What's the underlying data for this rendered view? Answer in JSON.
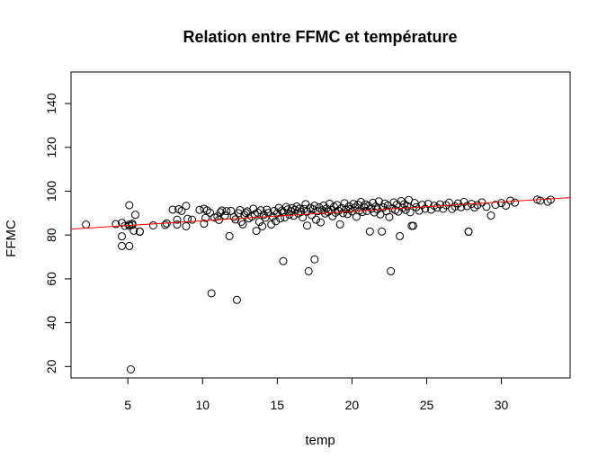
{
  "chart_data": {
    "type": "scatter",
    "title": "Relation entre  FFMC  et température",
    "xlabel": "temp",
    "ylabel": "FFMC",
    "xlim": [
      1.2,
      34.6
    ],
    "ylim": [
      14.8,
      154.4
    ],
    "xticks": [
      5,
      10,
      15,
      20,
      25,
      30
    ],
    "yticks": [
      20,
      40,
      60,
      80,
      100,
      120,
      140
    ],
    "grid": false,
    "regression_line": {
      "color": "#FF0000",
      "intercept": 82.2,
      "slope": 0.43
    },
    "points": [
      [
        2.2,
        84.8
      ],
      [
        4.2,
        85.0
      ],
      [
        4.6,
        85.6
      ],
      [
        4.6,
        79.4
      ],
      [
        4.6,
        75.0
      ],
      [
        4.8,
        84.2
      ],
      [
        5.1,
        84.2
      ],
      [
        5.1,
        93.6
      ],
      [
        5.1,
        75.0
      ],
      [
        5.1,
        84.8
      ],
      [
        5.2,
        18.7
      ],
      [
        5.3,
        85.2
      ],
      [
        5.3,
        84.6
      ],
      [
        5.4,
        82.0
      ],
      [
        5.5,
        89.2
      ],
      [
        5.8,
        81.6
      ],
      [
        5.8,
        81.5
      ],
      [
        6.7,
        84.4
      ],
      [
        7.5,
        84.6
      ],
      [
        7.6,
        85.3
      ],
      [
        8.0,
        91.6
      ],
      [
        8.3,
        87.0
      ],
      [
        8.3,
        84.8
      ],
      [
        8.4,
        91.8
      ],
      [
        8.6,
        91.0
      ],
      [
        8.9,
        84.0
      ],
      [
        8.9,
        93.3
      ],
      [
        9.0,
        87.4
      ],
      [
        9.3,
        87.0
      ],
      [
        9.8,
        91.5
      ],
      [
        10.1,
        85.2
      ],
      [
        10.1,
        92.0
      ],
      [
        10.2,
        87.8
      ],
      [
        10.3,
        91.2
      ],
      [
        10.5,
        90.2
      ],
      [
        10.6,
        53.4
      ],
      [
        10.8,
        88.0
      ],
      [
        11.0,
        88.5
      ],
      [
        11.1,
        86.9
      ],
      [
        11.2,
        90.4
      ],
      [
        11.3,
        91.2
      ],
      [
        11.5,
        88.9
      ],
      [
        11.6,
        90.9
      ],
      [
        11.8,
        79.5
      ],
      [
        11.9,
        91.0
      ],
      [
        12.1,
        88.2
      ],
      [
        12.2,
        87.1
      ],
      [
        12.3,
        50.4
      ],
      [
        12.4,
        90.0
      ],
      [
        12.5,
        91.4
      ],
      [
        12.6,
        86.1
      ],
      [
        12.7,
        84.9
      ],
      [
        12.8,
        89.2
      ],
      [
        12.9,
        90.1
      ],
      [
        13.0,
        90.8
      ],
      [
        13.1,
        87.6
      ],
      [
        13.3,
        88.4
      ],
      [
        13.4,
        92.0
      ],
      [
        13.5,
        89.4
      ],
      [
        13.6,
        81.9
      ],
      [
        13.7,
        90.2
      ],
      [
        13.8,
        86.0
      ],
      [
        13.9,
        91.3
      ],
      [
        14.0,
        84.0
      ],
      [
        14.1,
        89.2
      ],
      [
        14.2,
        87.9
      ],
      [
        14.3,
        91.6
      ],
      [
        14.4,
        90.1
      ],
      [
        14.6,
        84.8
      ],
      [
        14.7,
        88.4
      ],
      [
        14.8,
        91.0
      ],
      [
        14.9,
        86.3
      ],
      [
        15.0,
        89.9
      ],
      [
        15.1,
        92.4
      ],
      [
        15.2,
        87.6
      ],
      [
        15.3,
        91.1
      ],
      [
        15.4,
        68.1
      ],
      [
        15.4,
        90.5
      ],
      [
        15.5,
        88.1
      ],
      [
        15.6,
        92.8
      ],
      [
        15.7,
        91.7
      ],
      [
        15.8,
        89.3
      ],
      [
        15.9,
        90.9
      ],
      [
        16.0,
        92.3
      ],
      [
        16.1,
        88.8
      ],
      [
        16.2,
        91.5
      ],
      [
        16.3,
        93.0
      ],
      [
        16.4,
        89.9
      ],
      [
        16.5,
        92.1
      ],
      [
        16.6,
        90.6
      ],
      [
        16.7,
        88.0
      ],
      [
        16.8,
        91.9
      ],
      [
        16.9,
        94.1
      ],
      [
        17.0,
        84.3
      ],
      [
        17.0,
        90.7
      ],
      [
        17.1,
        63.5
      ],
      [
        17.2,
        92.4
      ],
      [
        17.3,
        89.1
      ],
      [
        17.4,
        91.8
      ],
      [
        17.5,
        68.9
      ],
      [
        17.5,
        93.4
      ],
      [
        17.6,
        87.0
      ],
      [
        17.7,
        90.9
      ],
      [
        17.8,
        92.6
      ],
      [
        17.9,
        85.8
      ],
      [
        18.0,
        91.3
      ],
      [
        18.1,
        93.5
      ],
      [
        18.2,
        89.8
      ],
      [
        18.3,
        92.1
      ],
      [
        18.4,
        90.6
      ],
      [
        18.5,
        94.3
      ],
      [
        18.6,
        91.5
      ],
      [
        18.7,
        88.6
      ],
      [
        18.8,
        92.9
      ],
      [
        18.9,
        90.2
      ],
      [
        19.0,
        93.7
      ],
      [
        19.1,
        91.1
      ],
      [
        19.2,
        84.9
      ],
      [
        19.3,
        92.3
      ],
      [
        19.4,
        90.0
      ],
      [
        19.5,
        94.5
      ],
      [
        19.6,
        91.7
      ],
      [
        19.7,
        89.6
      ],
      [
        19.8,
        93.1
      ],
      [
        19.9,
        91.9
      ],
      [
        20.0,
        90.8
      ],
      [
        20.1,
        94.2
      ],
      [
        20.2,
        92.5
      ],
      [
        20.3,
        88.3
      ],
      [
        20.4,
        93.8
      ],
      [
        20.5,
        91.2
      ],
      [
        20.6,
        95.1
      ],
      [
        20.7,
        90.5
      ],
      [
        20.8,
        92.8
      ],
      [
        20.9,
        94.0
      ],
      [
        21.0,
        91.0
      ],
      [
        21.1,
        93.3
      ],
      [
        21.2,
        81.6
      ],
      [
        21.3,
        92.0
      ],
      [
        21.4,
        94.7
      ],
      [
        21.5,
        90.3
      ],
      [
        21.6,
        93.0
      ],
      [
        21.7,
        91.7
      ],
      [
        21.8,
        95.4
      ],
      [
        21.9,
        89.4
      ],
      [
        22.0,
        81.6
      ],
      [
        22.1,
        92.6
      ],
      [
        22.2,
        94.4
      ],
      [
        22.3,
        90.9
      ],
      [
        22.4,
        93.5
      ],
      [
        22.5,
        88.2
      ],
      [
        22.6,
        63.5
      ],
      [
        22.7,
        92.2
      ],
      [
        22.8,
        94.9
      ],
      [
        22.9,
        91.4
      ],
      [
        23.0,
        93.9
      ],
      [
        23.1,
        90.7
      ],
      [
        23.2,
        79.5
      ],
      [
        23.3,
        95.5
      ],
      [
        23.4,
        92.4
      ],
      [
        23.5,
        94.1
      ],
      [
        23.6,
        91.5
      ],
      [
        23.7,
        93.2
      ],
      [
        23.8,
        96.0
      ],
      [
        23.9,
        90.4
      ],
      [
        24.0,
        84.2
      ],
      [
        24.1,
        84.2
      ],
      [
        24.2,
        94.6
      ],
      [
        24.3,
        92.7
      ],
      [
        24.5,
        91.1
      ],
      [
        24.7,
        93.8
      ],
      [
        24.9,
        92.0
      ],
      [
        25.1,
        94.2
      ],
      [
        25.3,
        91.6
      ],
      [
        25.5,
        93.4
      ],
      [
        25.7,
        92.5
      ],
      [
        25.9,
        94.0
      ],
      [
        26.1,
        92.0
      ],
      [
        26.3,
        93.6
      ],
      [
        26.5,
        94.8
      ],
      [
        26.7,
        91.9
      ],
      [
        26.9,
        93.0
      ],
      [
        27.1,
        94.4
      ],
      [
        27.3,
        92.7
      ],
      [
        27.5,
        95.1
      ],
      [
        27.7,
        93.2
      ],
      [
        27.8,
        81.6
      ],
      [
        27.8,
        81.5
      ],
      [
        28.0,
        94.2
      ],
      [
        28.2,
        92.6
      ],
      [
        28.4,
        93.7
      ],
      [
        28.7,
        94.9
      ],
      [
        29.0,
        92.9
      ],
      [
        29.3,
        88.9
      ],
      [
        29.6,
        93.8
      ],
      [
        30.0,
        94.6
      ],
      [
        30.3,
        93.4
      ],
      [
        30.6,
        95.7
      ],
      [
        30.9,
        94.8
      ],
      [
        32.4,
        96.2
      ],
      [
        32.6,
        95.7
      ],
      [
        33.1,
        95.2
      ],
      [
        33.3,
        96.1
      ]
    ]
  }
}
